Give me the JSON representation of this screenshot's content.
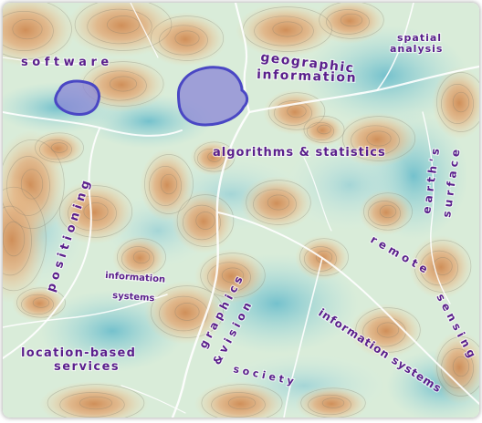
{
  "map": {
    "colors": {
      "label": "#5a1f8c",
      "lake_fill": "#8a86d6",
      "lake_stroke": "#4a47c4",
      "river": "#ffffff",
      "lowland": "#bfe0dc",
      "highland": "#e3a874",
      "water": "#7cc7d2"
    },
    "lakes": [
      "lake-west",
      "lake-central"
    ],
    "labels": {
      "software": "s o f t w a r e",
      "geographic": "geographic",
      "information": "information",
      "spatial": "spatial",
      "analysis": "analysis",
      "algorithms_statistics": "algorithms & statistics",
      "earths": "e a r t h ' s",
      "surface": "s u r f a c e",
      "positioning": "p o s i t i o n i n g",
      "information_systems_1": "information",
      "information_systems_2": "systems",
      "graphics": "g r a p h i c s",
      "vision": "& v i s i o n",
      "remote": "r e m o t e",
      "sensing": "s e n s i n g",
      "information_systems_curved": "information systems",
      "location_based": "location-based",
      "services": "services",
      "society": "s o c i e t y"
    }
  }
}
